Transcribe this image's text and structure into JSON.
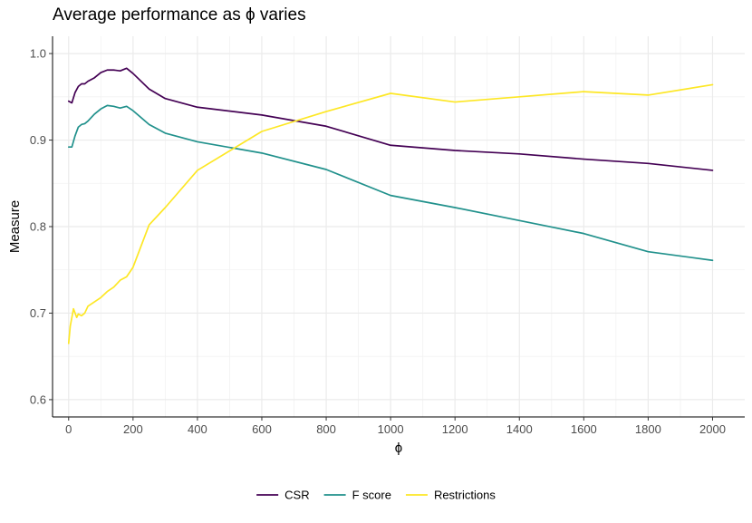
{
  "chart_data": {
    "type": "line",
    "title": "Average performance as ϕ varies",
    "xlabel": "ϕ",
    "ylabel": "Measure",
    "xlim": [
      -50,
      2100
    ],
    "ylim": [
      0.58,
      1.02
    ],
    "x_ticks": [
      0,
      200,
      400,
      600,
      800,
      1000,
      1200,
      1400,
      1600,
      1800,
      2000
    ],
    "y_ticks": [
      0.6,
      0.7,
      0.8,
      0.9,
      1.0
    ],
    "y_tick_labels": [
      "0.6",
      "0.7",
      "0.8",
      "0.9",
      "1.0"
    ],
    "grid": true,
    "legend_position": "bottom",
    "series": [
      {
        "name": "CSR",
        "color": "#440154",
        "points": [
          [
            0,
            0.945
          ],
          [
            10,
            0.943
          ],
          [
            20,
            0.955
          ],
          [
            30,
            0.962
          ],
          [
            40,
            0.965
          ],
          [
            50,
            0.965
          ],
          [
            60,
            0.968
          ],
          [
            80,
            0.972
          ],
          [
            100,
            0.978
          ],
          [
            120,
            0.981
          ],
          [
            140,
            0.981
          ],
          [
            160,
            0.98
          ],
          [
            180,
            0.983
          ],
          [
            200,
            0.977
          ],
          [
            250,
            0.959
          ],
          [
            300,
            0.948
          ],
          [
            400,
            0.938
          ],
          [
            600,
            0.929
          ],
          [
            800,
            0.916
          ],
          [
            1000,
            0.894
          ],
          [
            1200,
            0.888
          ],
          [
            1400,
            0.884
          ],
          [
            1600,
            0.878
          ],
          [
            1800,
            0.873
          ],
          [
            2000,
            0.865
          ]
        ]
      },
      {
        "name": "F score",
        "color": "#21918c",
        "points": [
          [
            0,
            0.892
          ],
          [
            10,
            0.892
          ],
          [
            20,
            0.905
          ],
          [
            30,
            0.915
          ],
          [
            40,
            0.918
          ],
          [
            50,
            0.919
          ],
          [
            60,
            0.922
          ],
          [
            80,
            0.93
          ],
          [
            100,
            0.936
          ],
          [
            120,
            0.94
          ],
          [
            140,
            0.939
          ],
          [
            160,
            0.937
          ],
          [
            180,
            0.939
          ],
          [
            200,
            0.934
          ],
          [
            250,
            0.918
          ],
          [
            300,
            0.908
          ],
          [
            400,
            0.898
          ],
          [
            600,
            0.885
          ],
          [
            800,
            0.866
          ],
          [
            1000,
            0.836
          ],
          [
            1200,
            0.822
          ],
          [
            1400,
            0.807
          ],
          [
            1600,
            0.792
          ],
          [
            1800,
            0.771
          ],
          [
            2000,
            0.761
          ]
        ]
      },
      {
        "name": "Restrictions",
        "color": "#fde725",
        "points": [
          [
            0,
            0.665
          ],
          [
            5,
            0.685
          ],
          [
            10,
            0.695
          ],
          [
            15,
            0.705
          ],
          [
            20,
            0.7
          ],
          [
            25,
            0.695
          ],
          [
            30,
            0.699
          ],
          [
            40,
            0.697
          ],
          [
            50,
            0.7
          ],
          [
            60,
            0.708
          ],
          [
            80,
            0.713
          ],
          [
            100,
            0.718
          ],
          [
            120,
            0.725
          ],
          [
            140,
            0.73
          ],
          [
            160,
            0.738
          ],
          [
            180,
            0.742
          ],
          [
            200,
            0.753
          ],
          [
            250,
            0.802
          ],
          [
            300,
            0.822
          ],
          [
            400,
            0.865
          ],
          [
            600,
            0.91
          ],
          [
            800,
            0.933
          ],
          [
            1000,
            0.954
          ],
          [
            1200,
            0.944
          ],
          [
            1400,
            0.95
          ],
          [
            1600,
            0.956
          ],
          [
            1800,
            0.952
          ],
          [
            2000,
            0.964
          ]
        ]
      }
    ]
  }
}
